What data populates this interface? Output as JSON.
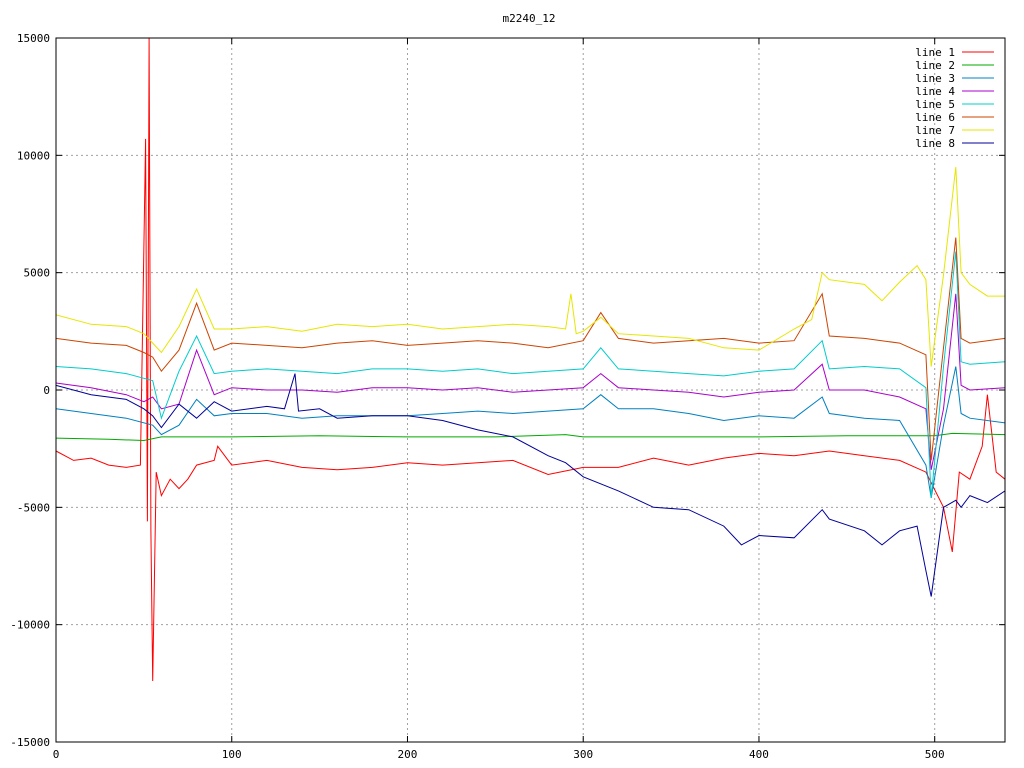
{
  "chart_data": {
    "type": "line",
    "title": "m2240_12",
    "xlabel": "",
    "ylabel": "",
    "xlim": [
      0,
      540
    ],
    "ylim": [
      -15000,
      15000
    ],
    "x_ticks": [
      0,
      100,
      200,
      300,
      400,
      500
    ],
    "y_ticks": [
      -15000,
      -10000,
      -5000,
      0,
      5000,
      10000,
      15000
    ],
    "grid": true,
    "legend_position": "top-right",
    "series": [
      {
        "name": "line 1",
        "color": "#ff0000",
        "points": [
          [
            0,
            -2600
          ],
          [
            10,
            -3000
          ],
          [
            20,
            -2900
          ],
          [
            30,
            -3200
          ],
          [
            40,
            -3300
          ],
          [
            48,
            -3200
          ],
          [
            51,
            10700
          ],
          [
            52,
            -5600
          ],
          [
            53,
            15000
          ],
          [
            54,
            -6000
          ],
          [
            55,
            -12400
          ],
          [
            57,
            -3500
          ],
          [
            60,
            -4500
          ],
          [
            65,
            -3800
          ],
          [
            70,
            -4200
          ],
          [
            75,
            -3800
          ],
          [
            80,
            -3200
          ],
          [
            90,
            -3000
          ],
          [
            92,
            -2400
          ],
          [
            100,
            -3200
          ],
          [
            120,
            -3000
          ],
          [
            140,
            -3300
          ],
          [
            160,
            -3400
          ],
          [
            180,
            -3300
          ],
          [
            200,
            -3100
          ],
          [
            220,
            -3200
          ],
          [
            240,
            -3100
          ],
          [
            260,
            -3000
          ],
          [
            280,
            -3600
          ],
          [
            300,
            -3300
          ],
          [
            320,
            -3300
          ],
          [
            340,
            -2900
          ],
          [
            360,
            -3200
          ],
          [
            380,
            -2900
          ],
          [
            400,
            -2700
          ],
          [
            420,
            -2800
          ],
          [
            440,
            -2600
          ],
          [
            460,
            -2800
          ],
          [
            480,
            -3000
          ],
          [
            495,
            -3500
          ],
          [
            505,
            -5000
          ],
          [
            510,
            -6900
          ],
          [
            514,
            -3500
          ],
          [
            520,
            -3800
          ],
          [
            527,
            -2400
          ],
          [
            530,
            -200
          ],
          [
            535,
            -3500
          ],
          [
            540,
            -3800
          ]
        ]
      },
      {
        "name": "line 2",
        "color": "#00aa00",
        "points": [
          [
            0,
            -2050
          ],
          [
            30,
            -2100
          ],
          [
            50,
            -2150
          ],
          [
            60,
            -2000
          ],
          [
            100,
            -2000
          ],
          [
            150,
            -1950
          ],
          [
            200,
            -2000
          ],
          [
            250,
            -2000
          ],
          [
            290,
            -1900
          ],
          [
            300,
            -2000
          ],
          [
            350,
            -2000
          ],
          [
            400,
            -2000
          ],
          [
            450,
            -1950
          ],
          [
            500,
            -1950
          ],
          [
            510,
            -1850
          ],
          [
            540,
            -1900
          ]
        ]
      },
      {
        "name": "line 3",
        "color": "#0080c0",
        "points": [
          [
            0,
            -800
          ],
          [
            20,
            -1000
          ],
          [
            40,
            -1200
          ],
          [
            55,
            -1500
          ],
          [
            60,
            -1900
          ],
          [
            70,
            -1500
          ],
          [
            80,
            -400
          ],
          [
            90,
            -1100
          ],
          [
            100,
            -1000
          ],
          [
            120,
            -1000
          ],
          [
            140,
            -1200
          ],
          [
            160,
            -1100
          ],
          [
            180,
            -1100
          ],
          [
            200,
            -1100
          ],
          [
            220,
            -1000
          ],
          [
            240,
            -900
          ],
          [
            260,
            -1000
          ],
          [
            280,
            -900
          ],
          [
            300,
            -800
          ],
          [
            310,
            -200
          ],
          [
            320,
            -800
          ],
          [
            340,
            -800
          ],
          [
            360,
            -1000
          ],
          [
            380,
            -1300
          ],
          [
            400,
            -1100
          ],
          [
            420,
            -1200
          ],
          [
            436,
            -300
          ],
          [
            440,
            -1000
          ],
          [
            460,
            -1200
          ],
          [
            480,
            -1300
          ],
          [
            495,
            -3200
          ],
          [
            498,
            -4600
          ],
          [
            505,
            -1500
          ],
          [
            512,
            1000
          ],
          [
            515,
            -1000
          ],
          [
            520,
            -1200
          ],
          [
            540,
            -1400
          ]
        ]
      },
      {
        "name": "line 4",
        "color": "#aa00cc",
        "points": [
          [
            0,
            300
          ],
          [
            20,
            100
          ],
          [
            40,
            -200
          ],
          [
            50,
            -500
          ],
          [
            55,
            -300
          ],
          [
            60,
            -800
          ],
          [
            70,
            -600
          ],
          [
            80,
            1700
          ],
          [
            90,
            -200
          ],
          [
            100,
            100
          ],
          [
            120,
            0
          ],
          [
            140,
            0
          ],
          [
            160,
            -100
          ],
          [
            180,
            100
          ],
          [
            200,
            100
          ],
          [
            220,
            0
          ],
          [
            240,
            100
          ],
          [
            260,
            -100
          ],
          [
            280,
            0
          ],
          [
            300,
            100
          ],
          [
            310,
            700
          ],
          [
            320,
            100
          ],
          [
            340,
            0
          ],
          [
            360,
            -100
          ],
          [
            380,
            -300
          ],
          [
            400,
            -100
          ],
          [
            420,
            0
          ],
          [
            436,
            1100
          ],
          [
            440,
            0
          ],
          [
            460,
            0
          ],
          [
            480,
            -300
          ],
          [
            495,
            -800
          ],
          [
            498,
            -3400
          ],
          [
            505,
            -800
          ],
          [
            512,
            4100
          ],
          [
            515,
            200
          ],
          [
            520,
            0
          ],
          [
            540,
            100
          ]
        ]
      },
      {
        "name": "line 5",
        "color": "#00cccc",
        "points": [
          [
            0,
            1000
          ],
          [
            20,
            900
          ],
          [
            40,
            700
          ],
          [
            50,
            500
          ],
          [
            55,
            400
          ],
          [
            60,
            -1200
          ],
          [
            70,
            800
          ],
          [
            80,
            2300
          ],
          [
            90,
            700
          ],
          [
            100,
            800
          ],
          [
            120,
            900
          ],
          [
            140,
            800
          ],
          [
            160,
            700
          ],
          [
            180,
            900
          ],
          [
            200,
            900
          ],
          [
            220,
            800
          ],
          [
            240,
            900
          ],
          [
            260,
            700
          ],
          [
            280,
            800
          ],
          [
            300,
            900
          ],
          [
            310,
            1800
          ],
          [
            320,
            900
          ],
          [
            340,
            800
          ],
          [
            360,
            700
          ],
          [
            380,
            600
          ],
          [
            400,
            800
          ],
          [
            420,
            900
          ],
          [
            436,
            2100
          ],
          [
            440,
            900
          ],
          [
            460,
            1000
          ],
          [
            480,
            900
          ],
          [
            495,
            100
          ],
          [
            498,
            -4600
          ],
          [
            505,
            1000
          ],
          [
            512,
            5900
          ],
          [
            515,
            1200
          ],
          [
            520,
            1100
          ],
          [
            540,
            1200
          ]
        ]
      },
      {
        "name": "line 6",
        "color": "#cc4400",
        "points": [
          [
            0,
            2200
          ],
          [
            20,
            2000
          ],
          [
            40,
            1900
          ],
          [
            50,
            1600
          ],
          [
            55,
            1400
          ],
          [
            60,
            800
          ],
          [
            70,
            1700
          ],
          [
            80,
            3700
          ],
          [
            90,
            1700
          ],
          [
            100,
            2000
          ],
          [
            120,
            1900
          ],
          [
            140,
            1800
          ],
          [
            160,
            2000
          ],
          [
            180,
            2100
          ],
          [
            200,
            1900
          ],
          [
            220,
            2000
          ],
          [
            240,
            2100
          ],
          [
            260,
            2000
          ],
          [
            280,
            1800
          ],
          [
            300,
            2100
          ],
          [
            310,
            3300
          ],
          [
            320,
            2200
          ],
          [
            340,
            2000
          ],
          [
            360,
            2100
          ],
          [
            380,
            2200
          ],
          [
            400,
            2000
          ],
          [
            420,
            2100
          ],
          [
            436,
            4100
          ],
          [
            440,
            2300
          ],
          [
            460,
            2200
          ],
          [
            480,
            2000
          ],
          [
            495,
            1500
          ],
          [
            498,
            -3000
          ],
          [
            505,
            1800
          ],
          [
            512,
            6500
          ],
          [
            515,
            2200
          ],
          [
            520,
            2000
          ],
          [
            540,
            2200
          ]
        ]
      },
      {
        "name": "line 7",
        "color": "#e6e600",
        "points": [
          [
            0,
            3200
          ],
          [
            20,
            2800
          ],
          [
            40,
            2700
          ],
          [
            50,
            2400
          ],
          [
            55,
            2000
          ],
          [
            60,
            1600
          ],
          [
            70,
            2700
          ],
          [
            80,
            4300
          ],
          [
            90,
            2600
          ],
          [
            100,
            2600
          ],
          [
            120,
            2700
          ],
          [
            140,
            2500
          ],
          [
            160,
            2800
          ],
          [
            180,
            2700
          ],
          [
            200,
            2800
          ],
          [
            220,
            2600
          ],
          [
            240,
            2700
          ],
          [
            260,
            2800
          ],
          [
            280,
            2700
          ],
          [
            290,
            2600
          ],
          [
            293,
            4100
          ],
          [
            296,
            2400
          ],
          [
            300,
            2500
          ],
          [
            310,
            3100
          ],
          [
            320,
            2400
          ],
          [
            340,
            2300
          ],
          [
            360,
            2200
          ],
          [
            380,
            1800
          ],
          [
            400,
            1700
          ],
          [
            420,
            2600
          ],
          [
            430,
            3000
          ],
          [
            436,
            5000
          ],
          [
            440,
            4700
          ],
          [
            460,
            4500
          ],
          [
            470,
            3800
          ],
          [
            480,
            4600
          ],
          [
            490,
            5300
          ],
          [
            495,
            4700
          ],
          [
            498,
            1000
          ],
          [
            505,
            4900
          ],
          [
            512,
            9500
          ],
          [
            515,
            5000
          ],
          [
            520,
            4500
          ],
          [
            530,
            4000
          ],
          [
            540,
            4000
          ]
        ]
      },
      {
        "name": "line 8",
        "color": "#000099",
        "points": [
          [
            0,
            200
          ],
          [
            20,
            -200
          ],
          [
            40,
            -400
          ],
          [
            50,
            -800
          ],
          [
            55,
            -1100
          ],
          [
            60,
            -1600
          ],
          [
            70,
            -600
          ],
          [
            80,
            -1200
          ],
          [
            90,
            -500
          ],
          [
            100,
            -900
          ],
          [
            120,
            -700
          ],
          [
            130,
            -800
          ],
          [
            136,
            700
          ],
          [
            138,
            -900
          ],
          [
            150,
            -800
          ],
          [
            160,
            -1200
          ],
          [
            180,
            -1100
          ],
          [
            200,
            -1100
          ],
          [
            220,
            -1300
          ],
          [
            240,
            -1700
          ],
          [
            260,
            -2000
          ],
          [
            280,
            -2800
          ],
          [
            290,
            -3100
          ],
          [
            300,
            -3700
          ],
          [
            320,
            -4300
          ],
          [
            340,
            -5000
          ],
          [
            360,
            -5100
          ],
          [
            380,
            -5800
          ],
          [
            390,
            -6600
          ],
          [
            400,
            -6200
          ],
          [
            420,
            -6300
          ],
          [
            436,
            -5100
          ],
          [
            440,
            -5500
          ],
          [
            460,
            -6000
          ],
          [
            470,
            -6600
          ],
          [
            480,
            -6000
          ],
          [
            490,
            -5800
          ],
          [
            495,
            -7700
          ],
          [
            498,
            -8800
          ],
          [
            505,
            -5000
          ],
          [
            512,
            -4700
          ],
          [
            515,
            -5000
          ],
          [
            520,
            -4500
          ],
          [
            530,
            -4800
          ],
          [
            540,
            -4300
          ]
        ]
      }
    ]
  }
}
